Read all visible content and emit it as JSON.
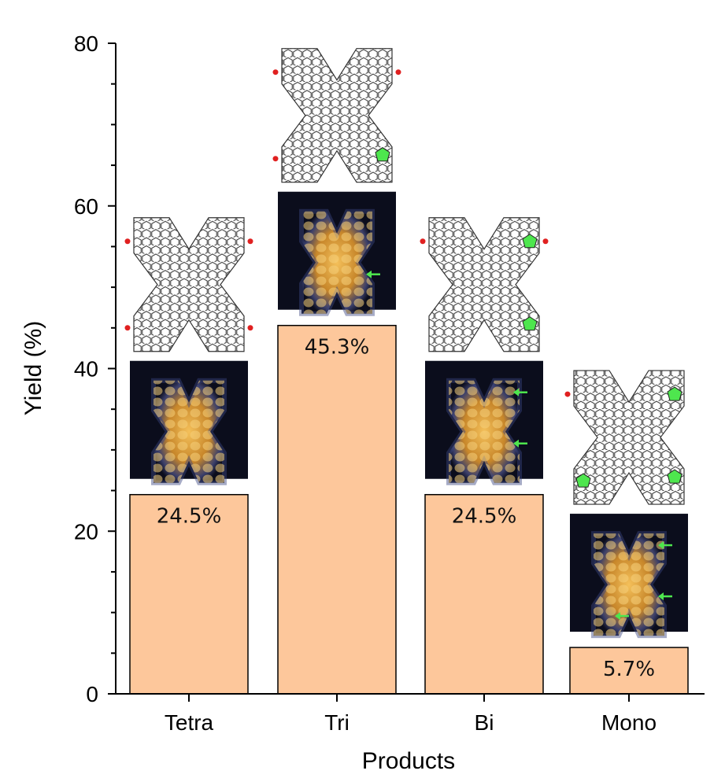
{
  "chart_data": {
    "type": "bar",
    "title": "",
    "xlabel": "Products",
    "ylabel": "Yield (%)",
    "categories": [
      "Tetra",
      "Tri",
      "Bi",
      "Mono"
    ],
    "values": [
      24.5,
      45.3,
      24.5,
      5.7
    ],
    "value_labels": [
      "24.5%",
      "45.3%",
      "24.5%",
      "5.7%"
    ],
    "ylim": [
      0,
      80
    ],
    "yticks": [
      0,
      20,
      40,
      60,
      80
    ],
    "grid": false,
    "bar_color": "#fdc79b",
    "bar_edge_color": "#000000",
    "pentagon_counts": [
      0,
      1,
      2,
      3
    ],
    "inset_highlight_color": "#4ee64e"
  }
}
